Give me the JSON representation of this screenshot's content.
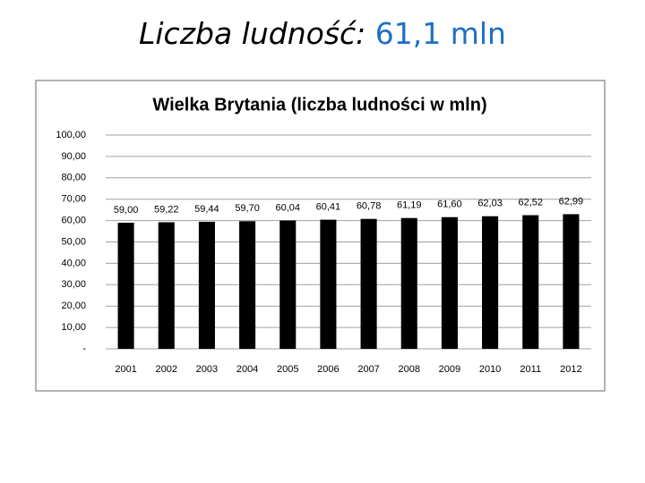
{
  "slide_title": {
    "label": "Liczba ludność:",
    "value": "61,1 mln"
  },
  "chart_data": {
    "type": "bar",
    "title": "Wielka Brytania (liczba ludności w mln)",
    "categories": [
      "2001",
      "2002",
      "2003",
      "2004",
      "2005",
      "2006",
      "2007",
      "2008",
      "2009",
      "2010",
      "2011",
      "2012"
    ],
    "values": [
      59.0,
      59.22,
      59.44,
      59.7,
      60.04,
      60.41,
      60.78,
      61.19,
      61.6,
      62.03,
      62.52,
      62.99
    ],
    "value_labels": [
      "59,00",
      "59,22",
      "59,44",
      "59,70",
      "60,04",
      "60,41",
      "60,78",
      "61,19",
      "61,60",
      "62,03",
      "62,52",
      "62,99"
    ],
    "color": "#000000",
    "ylim": [
      0,
      100
    ],
    "yticks": [
      {
        "value": 0,
        "label": "-"
      },
      {
        "value": 10,
        "label": "10,00"
      },
      {
        "value": 20,
        "label": "20,00"
      },
      {
        "value": 30,
        "label": "30,00"
      },
      {
        "value": 40,
        "label": "40,00"
      },
      {
        "value": 50,
        "label": "50,00"
      },
      {
        "value": 60,
        "label": "60,00"
      },
      {
        "value": 70,
        "label": "70,00"
      },
      {
        "value": 80,
        "label": "80,00"
      },
      {
        "value": 90,
        "label": "90,00"
      },
      {
        "value": 100,
        "label": "100,00"
      }
    ],
    "grid": true
  }
}
